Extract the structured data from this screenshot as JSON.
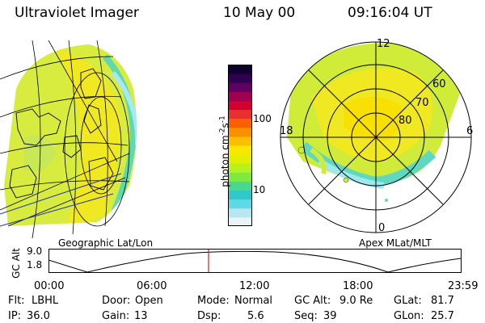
{
  "header": {
    "instrument": "Ultraviolet Imager",
    "date": "10 May 00",
    "time": "09:16:04 UT"
  },
  "colorbar": {
    "unit_main": "photon cm",
    "unit_exp1": "-2",
    "unit_mid": "s",
    "unit_exp2": "-1",
    "tick_100": "100",
    "tick_10": "10",
    "colors": [
      "#e8f4f8",
      "#b8e6f0",
      "#60d8e8",
      "#30c8c8",
      "#48d890",
      "#80e840",
      "#b8f020",
      "#e0f000",
      "#f8e800",
      "#f8c000",
      "#f89000",
      "#f86000",
      "#e83030",
      "#d00030",
      "#a00050",
      "#600060",
      "#300050",
      "#100030"
    ]
  },
  "geo_map": {
    "label": "Geographic Lat/Lon"
  },
  "polar_plot": {
    "label": "Apex MLat/MLT",
    "mlt_labels": {
      "top": "12",
      "left": "18",
      "right": "6",
      "bottom": "0"
    },
    "lat_labels": [
      "60",
      "70",
      "80"
    ]
  },
  "altitude_plot": {
    "ylabel": "GC Alt",
    "y_ticks": [
      "9.0",
      "1.8"
    ],
    "x_ticks": [
      "00:00",
      "06:00",
      "12:00",
      "18:00",
      "23:59"
    ],
    "marker_color": "#d02020"
  },
  "info": {
    "row1": {
      "flt_label": "Flt:",
      "flt_value": "LBHL",
      "door_label": "Door:",
      "door_value": "Open",
      "mode_label": "Mode:",
      "mode_value": "Normal",
      "gcalt_label": "GC Alt:",
      "gcalt_value": "9.0 Re",
      "glat_label": "GLat:",
      "glat_value": "81.7"
    },
    "row2": {
      "ip_label": "IP:",
      "ip_value": "36.0",
      "gain_label": "Gain:",
      "gain_value": "13",
      "dsp_label": "Dsp:",
      "dsp_value": "5.6",
      "seq_label": "Seq:",
      "seq_value": "39",
      "glon_label": "GLon:",
      "glon_value": "25.7"
    }
  }
}
